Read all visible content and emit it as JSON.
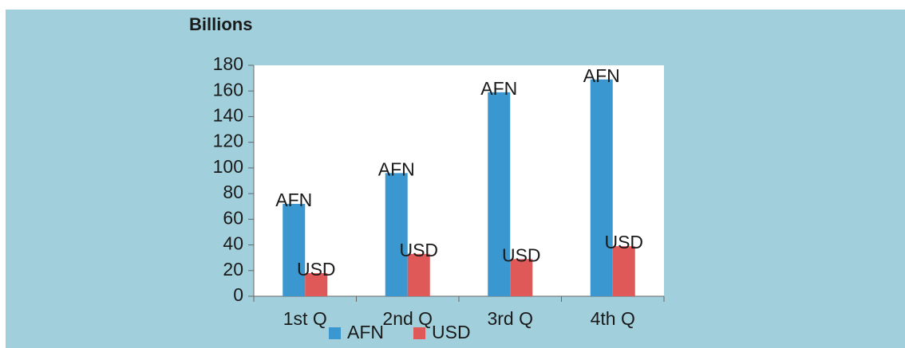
{
  "chart_data": {
    "type": "bar",
    "title": "Billions",
    "categories": [
      "1st Q",
      "2nd Q",
      "3rd Q",
      "4th Q"
    ],
    "series": [
      {
        "name": "AFN",
        "color": "#3a97cf",
        "values": [
          72,
          96,
          159,
          169
        ]
      },
      {
        "name": "USD",
        "color": "#df5958",
        "values": [
          18,
          33,
          29,
          39
        ]
      }
    ],
    "ylim": [
      0,
      180
    ],
    "yticks": [
      0,
      20,
      40,
      60,
      80,
      100,
      120,
      140,
      160,
      180
    ],
    "grid": false,
    "legend": "bottom"
  }
}
